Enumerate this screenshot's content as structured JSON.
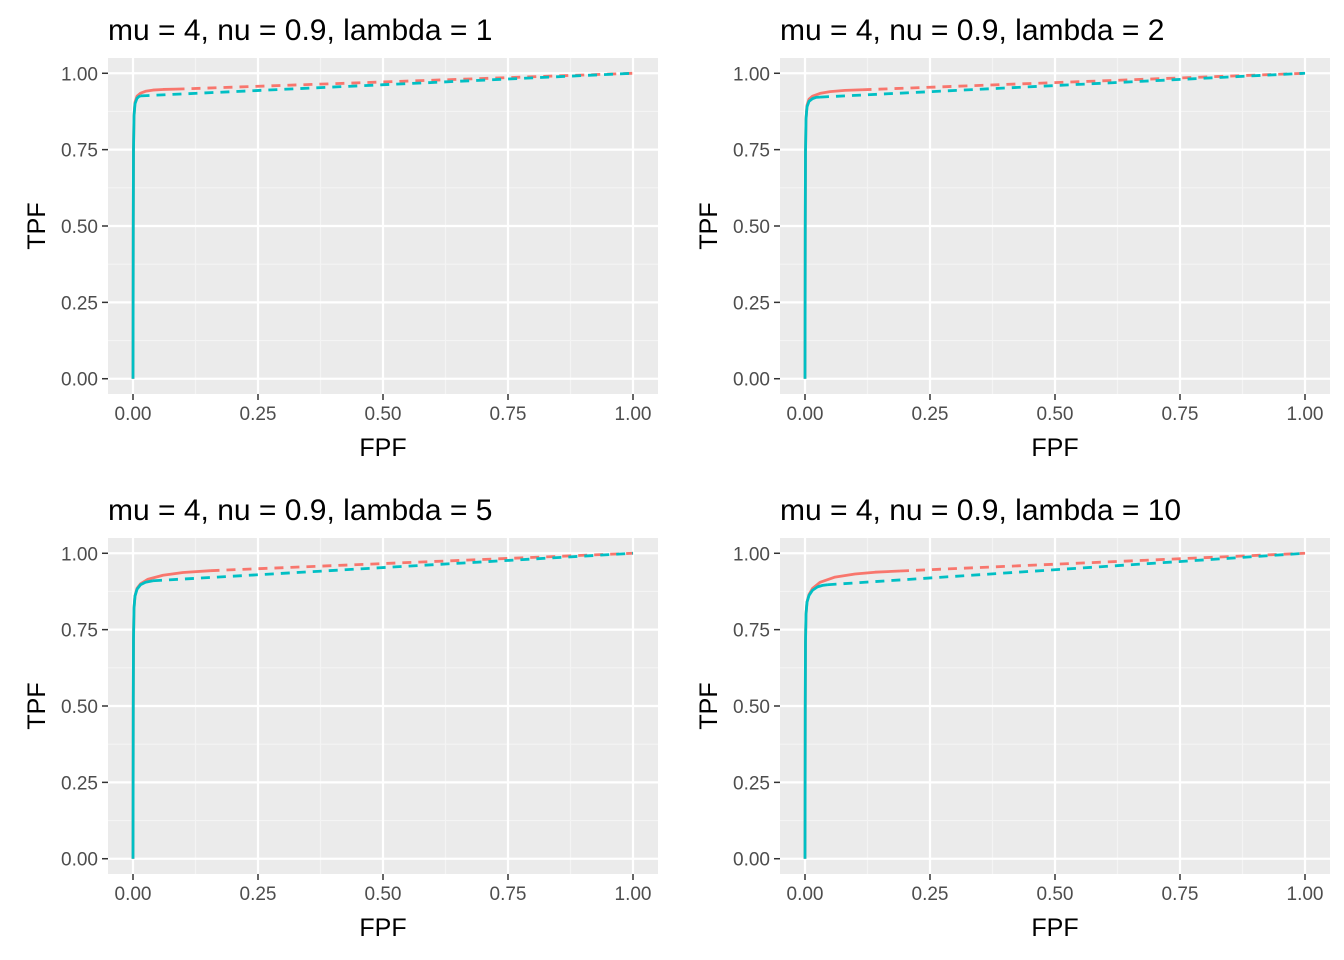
{
  "colors": {
    "panel_bg": "#ebebeb",
    "grid_major": "#ffffff",
    "grid_minor": "#f4f4f4",
    "tick_text": "#4d4d4d",
    "series_red": "#f8766d",
    "series_teal": "#00bfc4"
  },
  "chart_data": [
    {
      "type": "line",
      "title": "mu = 4, nu = 0.9, lambda = 1",
      "xlabel": "FPF",
      "ylabel": "TPF",
      "xlim": [
        0,
        1
      ],
      "ylim": [
        0,
        1
      ],
      "xticks": [
        "0.00",
        "0.25",
        "0.50",
        "0.75",
        "1.00"
      ],
      "yticks": [
        "0.00",
        "0.25",
        "0.50",
        "0.75",
        "1.00"
      ],
      "grid": true,
      "legend": "none",
      "series": [
        {
          "color": "#f8766d",
          "style": "solid",
          "x": [
            0,
            0.0005,
            0.001,
            0.002,
            0.004,
            0.008,
            0.015,
            0.025,
            0.04,
            0.06,
            0.085
          ],
          "y": [
            0,
            0.5,
            0.75,
            0.86,
            0.905,
            0.925,
            0.935,
            0.941,
            0.945,
            0.947,
            0.948
          ]
        },
        {
          "color": "#f8766d",
          "style": "dashed",
          "x": [
            0.085,
            1.0
          ],
          "y": [
            0.948,
            1.0
          ]
        },
        {
          "color": "#00bfc4",
          "style": "solid",
          "x": [
            0,
            0.0005,
            0.001,
            0.002,
            0.004,
            0.008,
            0.012,
            0.015
          ],
          "y": [
            0,
            0.5,
            0.75,
            0.86,
            0.9,
            0.918,
            0.924,
            0.926
          ]
        },
        {
          "color": "#00bfc4",
          "style": "dashed",
          "x": [
            0.015,
            1.0
          ],
          "y": [
            0.926,
            1.0
          ]
        }
      ]
    },
    {
      "type": "line",
      "title": "mu = 4, nu = 0.9, lambda = 2",
      "xlabel": "FPF",
      "ylabel": "TPF",
      "xlim": [
        0,
        1
      ],
      "ylim": [
        0,
        1
      ],
      "xticks": [
        "0.00",
        "0.25",
        "0.50",
        "0.75",
        "1.00"
      ],
      "yticks": [
        "0.00",
        "0.25",
        "0.50",
        "0.75",
        "1.00"
      ],
      "grid": true,
      "legend": "none",
      "series": [
        {
          "color": "#f8766d",
          "style": "solid",
          "x": [
            0,
            0.0005,
            0.001,
            0.002,
            0.004,
            0.008,
            0.015,
            0.03,
            0.05,
            0.08,
            0.115
          ],
          "y": [
            0,
            0.5,
            0.74,
            0.85,
            0.895,
            0.915,
            0.925,
            0.934,
            0.94,
            0.944,
            0.946
          ]
        },
        {
          "color": "#f8766d",
          "style": "dashed",
          "x": [
            0.115,
            1.0
          ],
          "y": [
            0.946,
            1.0
          ]
        },
        {
          "color": "#00bfc4",
          "style": "solid",
          "x": [
            0,
            0.0005,
            0.001,
            0.002,
            0.004,
            0.008,
            0.015,
            0.022,
            0.03
          ],
          "y": [
            0,
            0.5,
            0.74,
            0.85,
            0.89,
            0.908,
            0.917,
            0.921,
            0.922
          ]
        },
        {
          "color": "#00bfc4",
          "style": "dashed",
          "x": [
            0.03,
            1.0
          ],
          "y": [
            0.922,
            1.0
          ]
        }
      ]
    },
    {
      "type": "line",
      "title": "mu = 4, nu = 0.9, lambda = 5",
      "xlabel": "FPF",
      "ylabel": "TPF",
      "xlim": [
        0,
        1
      ],
      "ylim": [
        0,
        1
      ],
      "xticks": [
        "0.00",
        "0.25",
        "0.50",
        "0.75",
        "1.00"
      ],
      "yticks": [
        "0.00",
        "0.25",
        "0.50",
        "0.75",
        "1.00"
      ],
      "grid": true,
      "legend": "none",
      "series": [
        {
          "color": "#f8766d",
          "style": "solid",
          "x": [
            0,
            0.0005,
            0.001,
            0.002,
            0.004,
            0.008,
            0.015,
            0.03,
            0.06,
            0.1,
            0.155
          ],
          "y": [
            0,
            0.5,
            0.72,
            0.82,
            0.86,
            0.885,
            0.9,
            0.915,
            0.928,
            0.937,
            0.943
          ]
        },
        {
          "color": "#f8766d",
          "style": "dashed",
          "x": [
            0.155,
            1.0
          ],
          "y": [
            0.943,
            1.0
          ]
        },
        {
          "color": "#00bfc4",
          "style": "solid",
          "x": [
            0,
            0.0005,
            0.001,
            0.002,
            0.004,
            0.008,
            0.015,
            0.025,
            0.04
          ],
          "y": [
            0,
            0.5,
            0.72,
            0.82,
            0.86,
            0.882,
            0.897,
            0.905,
            0.91
          ]
        },
        {
          "color": "#00bfc4",
          "style": "dashed",
          "x": [
            0.04,
            1.0
          ],
          "y": [
            0.91,
            1.0
          ]
        }
      ]
    },
    {
      "type": "line",
      "title": "mu = 4, nu = 0.9, lambda = 10",
      "xlabel": "FPF",
      "ylabel": "TPF",
      "xlim": [
        0,
        1
      ],
      "ylim": [
        0,
        1
      ],
      "xticks": [
        "0.00",
        "0.25",
        "0.50",
        "0.75",
        "1.00"
      ],
      "yticks": [
        "0.00",
        "0.25",
        "0.50",
        "0.75",
        "1.00"
      ],
      "grid": true,
      "legend": "none",
      "series": [
        {
          "color": "#f8766d",
          "style": "solid",
          "x": [
            0,
            0.0005,
            0.001,
            0.002,
            0.004,
            0.008,
            0.015,
            0.03,
            0.06,
            0.1,
            0.14,
            0.19
          ],
          "y": [
            0,
            0.5,
            0.71,
            0.8,
            0.84,
            0.865,
            0.885,
            0.905,
            0.922,
            0.932,
            0.938,
            0.942
          ]
        },
        {
          "color": "#f8766d",
          "style": "dashed",
          "x": [
            0.19,
            1.0
          ],
          "y": [
            0.942,
            1.0
          ]
        },
        {
          "color": "#00bfc4",
          "style": "solid",
          "x": [
            0,
            0.0005,
            0.001,
            0.002,
            0.004,
            0.008,
            0.015,
            0.025,
            0.035,
            0.045
          ],
          "y": [
            0,
            0.5,
            0.71,
            0.8,
            0.84,
            0.862,
            0.879,
            0.89,
            0.895,
            0.897
          ]
        },
        {
          "color": "#00bfc4",
          "style": "dashed",
          "x": [
            0.045,
            1.0
          ],
          "y": [
            0.897,
            1.0
          ]
        }
      ]
    }
  ]
}
